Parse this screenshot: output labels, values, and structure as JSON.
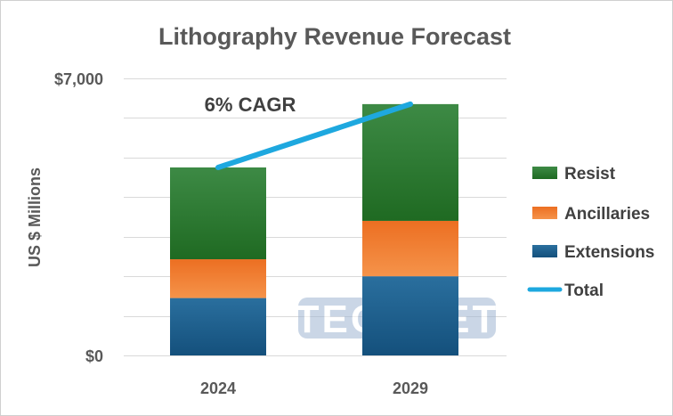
{
  "chart_data": {
    "type": "bar",
    "stacked": true,
    "title": "Lithography Revenue Forecast",
    "xlabel": "",
    "ylabel": "US $ Millions",
    "categories": [
      "2024",
      "2029"
    ],
    "ylim": [
      0,
      7000
    ],
    "yticks_labeled": [
      "$0",
      "$7,000"
    ],
    "gridline_step": 1000,
    "grid": true,
    "series": [
      {
        "name": "Extensions",
        "values": [
          1450,
          2000
        ],
        "color": "#1f5e8c"
      },
      {
        "name": "Ancillaries",
        "values": [
          980,
          1400
        ],
        "color": "#f07a2a"
      },
      {
        "name": "Resist",
        "values": [
          2320,
          2950
        ],
        "color": "#2f7a32"
      }
    ],
    "line_series": {
      "name": "Total",
      "values": [
        4750,
        6350
      ],
      "color": "#1ea8df"
    },
    "annotation": "6% CAGR",
    "legend_position": "right",
    "watermark": "TECHCET"
  }
}
